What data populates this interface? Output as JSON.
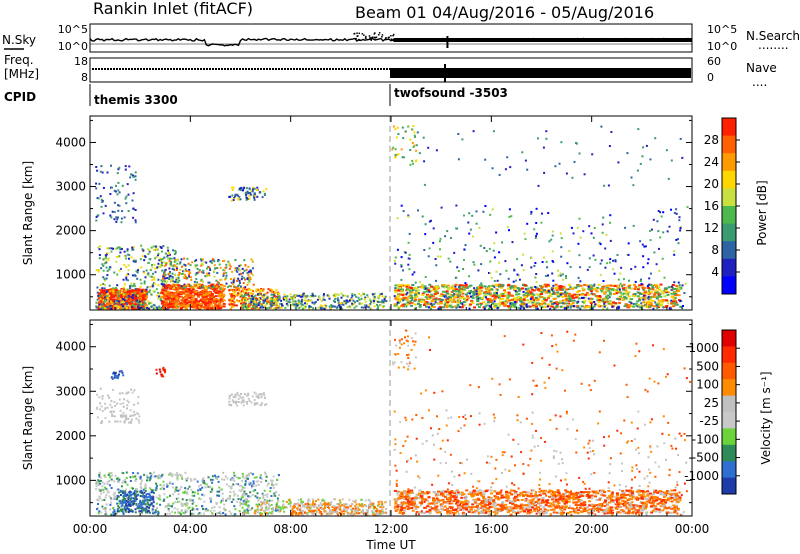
{
  "header": {
    "station": "Rankin Inlet (fitACF)",
    "beam": "Beam 01",
    "dates": "04/Aug/2016 - 05/Aug/2016"
  },
  "sky_panel": {
    "left_label": "N.Sky",
    "right_label": "N.Search",
    "right_sub": "........",
    "left_ticks": [
      "10^5",
      "10^0"
    ],
    "right_ticks": [
      "10^5",
      "10^0"
    ]
  },
  "freq_panel": {
    "left_label_1": "Freq.",
    "left_label_2": "[MHz]",
    "right_label": "Nave",
    "right_sub": "....",
    "left_ticks": [
      "18",
      "8"
    ],
    "right_ticks": [
      "60",
      "0"
    ]
  },
  "cpid": {
    "label": "CPID",
    "segments": [
      {
        "name": "themis 3300",
        "start_hour": 0
      },
      {
        "name": "twofsound -3503",
        "start_hour": 12.1
      }
    ]
  },
  "colors": {
    "power": [
      "#0000ff",
      "#2020c0",
      "#2f64a4",
      "#3a9a70",
      "#4db84d",
      "#c8e040",
      "#ffd700",
      "#ff9a00",
      "#ff6000",
      "#ff2000"
    ],
    "velocity": [
      "#1e3ca8",
      "#2e6fd0",
      "#2e8b57",
      "#6ad43a",
      "#c8c8c8",
      "#c0c0c0",
      "#ff8c00",
      "#ff5a00",
      "#ff2a00",
      "#e00000"
    ]
  },
  "chart_data": [
    {
      "type": "heatmap",
      "name": "power",
      "ylabel": "Slant Range [km]",
      "xlabel": "",
      "xlim": [
        0,
        24
      ],
      "ylim": [
        200,
        4600
      ],
      "yticks": [
        "1000",
        "2000",
        "3000",
        "4000"
      ],
      "xticks": [
        "00:00",
        "04:00",
        "08:00",
        "12:00",
        "16:00",
        "20:00",
        "00:00"
      ],
      "colorbar_label": "Power [dB]",
      "colorbar_ticks": [
        "28",
        "24",
        "20",
        "16",
        "12",
        "8",
        "4"
      ],
      "colorbar_range": [
        0,
        30
      ]
    },
    {
      "type": "heatmap",
      "name": "velocity",
      "ylabel": "Slant Range [km]",
      "xlabel": "Time UT",
      "xlim": [
        0,
        24
      ],
      "ylim": [
        200,
        4600
      ],
      "yticks": [
        "1000",
        "2000",
        "3000",
        "4000"
      ],
      "xticks": [
        "00:00",
        "04:00",
        "08:00",
        "12:00",
        "16:00",
        "20:00",
        "00:00"
      ],
      "colorbar_label": "Velocity [m s⁻¹]",
      "colorbar_ticks": [
        "1000",
        "500",
        "100",
        "25",
        "-25",
        "-100",
        "-500",
        "-1000"
      ],
      "colorbar_range": [
        -1000,
        1000
      ]
    }
  ]
}
